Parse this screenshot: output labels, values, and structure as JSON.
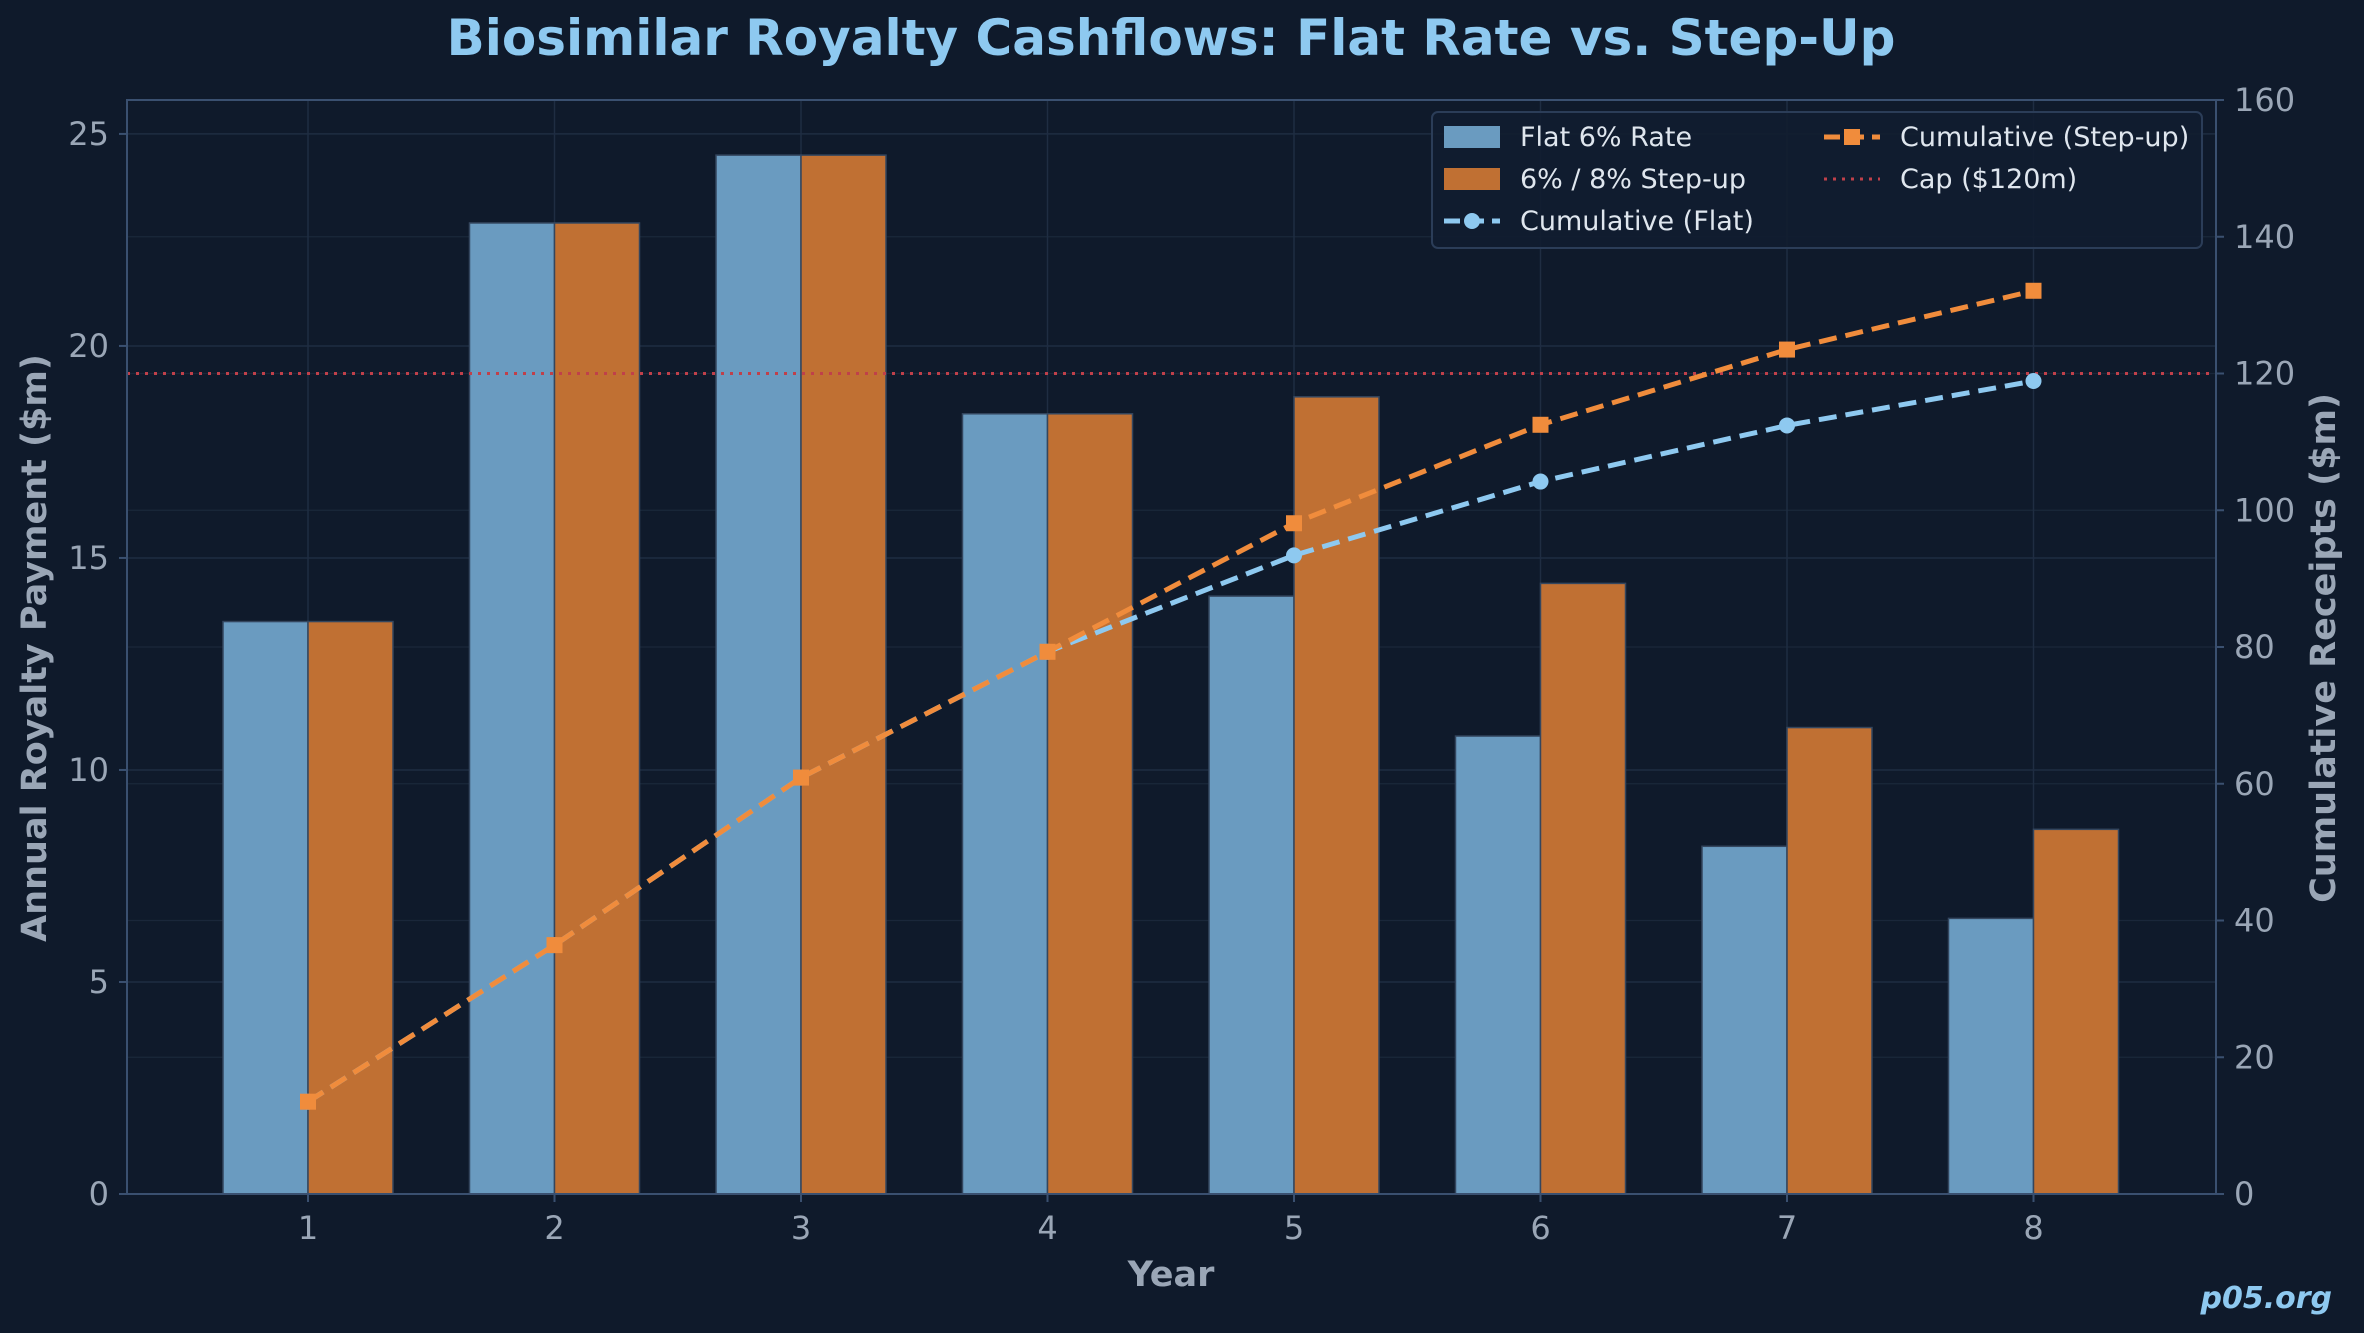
{
  "chart_data": {
    "type": "bar",
    "title": "Biosimilar Royalty Cashflows: Flat Rate vs. Step-Up",
    "xlabel": "Year",
    "ylabel": "Annual Royalty Payment ($m)",
    "y2label": "Cumulative Receipts ($m)",
    "categories": [
      "1",
      "2",
      "3",
      "4",
      "5",
      "6",
      "7",
      "8"
    ],
    "ylim": [
      0,
      25.8
    ],
    "y2lim": [
      0,
      160
    ],
    "yticks": [
      0,
      5,
      10,
      15,
      20,
      25
    ],
    "y2ticks": [
      0,
      20,
      40,
      60,
      80,
      100,
      120,
      140,
      160
    ],
    "grid": true,
    "legend_position": "top-right",
    "series": [
      {
        "name": "Flat 6% Rate",
        "kind": "bar",
        "axis": "left",
        "color": "#6a9bc0",
        "values": [
          13.5,
          22.9,
          24.5,
          18.4,
          14.1,
          10.8,
          8.2,
          6.5
        ]
      },
      {
        "name": "6% / 8% Step-up",
        "kind": "bar",
        "axis": "left",
        "color": "#c07033",
        "values": [
          13.5,
          22.9,
          24.5,
          18.4,
          18.8,
          14.4,
          11.0,
          8.6
        ]
      },
      {
        "name": "Cumulative (Flat)",
        "kind": "line",
        "axis": "right",
        "color": "#8ec9f0",
        "marker": "circle",
        "values": [
          13.5,
          36.4,
          60.9,
          79.3,
          93.4,
          104.2,
          112.4,
          118.9
        ]
      },
      {
        "name": "Cumulative (Step-up)",
        "kind": "line",
        "axis": "right",
        "color": "#f08c3c",
        "marker": "square",
        "values": [
          13.5,
          36.4,
          60.9,
          79.3,
          98.1,
          112.5,
          123.5,
          132.1
        ]
      }
    ],
    "reference_lines": [
      {
        "name": "Cap ($120m)",
        "axis": "right",
        "value": 120,
        "color": "#c0404a"
      }
    ]
  },
  "watermark": "p05.org",
  "colors": {
    "background": "#0f1a2b",
    "axis": "#3a5070",
    "grid": "#1f2d42"
  }
}
